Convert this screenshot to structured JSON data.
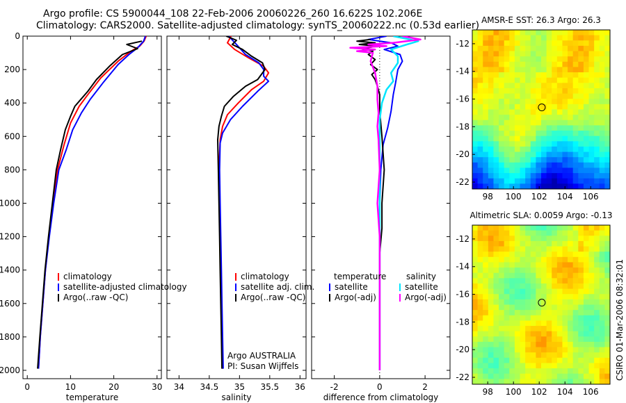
{
  "header": {
    "line1": "Argo profile: CS 5900044_108 22-Feb-2006 20060226_260 16.622S 102.206E",
    "line2": "Climatology: CARS2000. Satellite-adjusted climatology: synTS_20060222.nc (0.53d earlier)"
  },
  "side_label": "CSIRO 01-Mar-2006 08:32:01",
  "colors": {
    "climatology": "#ff0000",
    "satellite": "#0000ff",
    "argo": "#000000",
    "sal_sat": "#00e5ff",
    "sal_argo": "#ff00ff"
  },
  "chart_data": [
    {
      "type": "line",
      "id": "temperature",
      "xlabel": "temperature",
      "ylabel": "",
      "xlim": [
        -1,
        31
      ],
      "ylim": [
        2050,
        0
      ],
      "xticks": [
        0,
        10,
        20,
        30
      ],
      "yticks": [
        0,
        200,
        400,
        600,
        800,
        1000,
        1200,
        1400,
        1600,
        1800,
        2000
      ],
      "legend": {
        "position": "lower-right",
        "entries": [
          "climatology",
          "satellite-adjusted climatology",
          "Argo(..raw -QC)"
        ]
      },
      "series": [
        {
          "name": "climatology",
          "color": "red",
          "points": [
            [
              27.5,
              0
            ],
            [
              27,
              30
            ],
            [
              26,
              60
            ],
            [
              24,
              90
            ],
            [
              21,
              150
            ],
            [
              17,
              250
            ],
            [
              14,
              350
            ],
            [
              12,
              420
            ],
            [
              10,
              520
            ],
            [
              8.5,
              650
            ],
            [
              7,
              800
            ],
            [
              6,
              1000
            ],
            [
              5,
              1200
            ],
            [
              4.2,
              1400
            ],
            [
              3.6,
              1600
            ],
            [
              3,
              1800
            ],
            [
              2.6,
              1990
            ]
          ]
        },
        {
          "name": "satellite",
          "color": "blue",
          "points": [
            [
              27.3,
              0
            ],
            [
              26.9,
              30
            ],
            [
              25.5,
              70
            ],
            [
              23.5,
              110
            ],
            [
              21,
              170
            ],
            [
              17.5,
              280
            ],
            [
              14.5,
              380
            ],
            [
              12.5,
              460
            ],
            [
              10.5,
              560
            ],
            [
              9,
              680
            ],
            [
              7.3,
              800
            ],
            [
              6.1,
              1000
            ],
            [
              5.1,
              1200
            ],
            [
              4.2,
              1400
            ],
            [
              3.6,
              1600
            ],
            [
              3,
              1800
            ],
            [
              2.6,
              1990
            ]
          ]
        },
        {
          "name": "argo",
          "color": "black",
          "points": [
            [
              26.5,
              30
            ],
            [
              23,
              50
            ],
            [
              25.5,
              75
            ],
            [
              22,
              110
            ],
            [
              19,
              180
            ],
            [
              16,
              260
            ],
            [
              14,
              330
            ],
            [
              12,
              390
            ],
            [
              11,
              420
            ],
            [
              10,
              480
            ],
            [
              8.8,
              560
            ],
            [
              7.7,
              680
            ],
            [
              6.7,
              800
            ],
            [
              5.8,
              1000
            ],
            [
              4.9,
              1200
            ],
            [
              4.1,
              1400
            ],
            [
              3.5,
              1600
            ],
            [
              2.9,
              1800
            ],
            [
              2.4,
              1990
            ]
          ]
        }
      ]
    },
    {
      "type": "line",
      "id": "salinity",
      "xlabel": "salinity",
      "xlim": [
        33.8,
        36.1
      ],
      "ylim": [
        2050,
        0
      ],
      "xticks": [
        34,
        34.5,
        35,
        35.5,
        36
      ],
      "legend": {
        "position": "lower-right",
        "entries": [
          "climatology",
          "satellite adj. clim.",
          "Argo(..raw -QC)"
        ]
      },
      "annotation": [
        "Argo AUSTRALIA",
        "PI: Susan Wijffels"
      ],
      "series": [
        {
          "name": "climatology",
          "color": "red",
          "points": [
            [
              34.86,
              0
            ],
            [
              34.8,
              40
            ],
            [
              34.92,
              80
            ],
            [
              35.15,
              130
            ],
            [
              35.4,
              180
            ],
            [
              35.48,
              220
            ],
            [
              35.4,
              270
            ],
            [
              35.2,
              320
            ],
            [
              34.98,
              400
            ],
            [
              34.8,
              470
            ],
            [
              34.72,
              540
            ],
            [
              34.68,
              620
            ],
            [
              34.66,
              800
            ],
            [
              34.67,
              1000
            ],
            [
              34.68,
              1200
            ],
            [
              34.69,
              1400
            ],
            [
              34.7,
              1600
            ],
            [
              34.71,
              1800
            ],
            [
              34.72,
              1990
            ]
          ]
        },
        {
          "name": "satellite",
          "color": "blue",
          "points": [
            [
              34.82,
              0
            ],
            [
              34.95,
              50
            ],
            [
              35.1,
              110
            ],
            [
              35.32,
              160
            ],
            [
              35.4,
              200
            ],
            [
              35.4,
              240
            ],
            [
              35.48,
              270
            ],
            [
              35.3,
              330
            ],
            [
              35.05,
              420
            ],
            [
              34.85,
              500
            ],
            [
              34.72,
              580
            ],
            [
              34.68,
              640
            ],
            [
              34.67,
              800
            ],
            [
              34.68,
              1000
            ],
            [
              34.69,
              1200
            ],
            [
              34.7,
              1400
            ],
            [
              34.71,
              1600
            ],
            [
              34.72,
              1800
            ],
            [
              34.73,
              1990
            ]
          ]
        },
        {
          "name": "argo",
          "color": "black",
          "points": [
            [
              34.78,
              0
            ],
            [
              34.95,
              25
            ],
            [
              34.88,
              50
            ],
            [
              35.05,
              80
            ],
            [
              35.2,
              120
            ],
            [
              35.38,
              160
            ],
            [
              35.42,
              200
            ],
            [
              35.3,
              260
            ],
            [
              35.1,
              300
            ],
            [
              34.9,
              360
            ],
            [
              34.75,
              420
            ],
            [
              34.7,
              480
            ],
            [
              34.66,
              540
            ],
            [
              34.64,
              620
            ],
            [
              34.65,
              800
            ],
            [
              34.66,
              1000
            ],
            [
              34.67,
              1200
            ],
            [
              34.68,
              1400
            ],
            [
              34.69,
              1600
            ],
            [
              34.7,
              1800
            ],
            [
              34.71,
              1990
            ]
          ]
        }
      ]
    },
    {
      "type": "line",
      "id": "difference",
      "xlabel": "difference from climatology",
      "xlim": [
        -3,
        3.1
      ],
      "ylim": [
        2050,
        0
      ],
      "xticks": [
        -2,
        0,
        2
      ],
      "legend": {
        "position": "lower-right",
        "entries": [
          "temperature",
          "satellite",
          "Argo(-adj)",
          "salinity",
          "satellite",
          "Argo(-adj)"
        ]
      },
      "series": [
        {
          "name": "temperature satellite",
          "color": "blue",
          "points": [
            [
              0.3,
              0
            ],
            [
              -0.5,
              20
            ],
            [
              0.5,
              40
            ],
            [
              0.8,
              60
            ],
            [
              0.2,
              80
            ],
            [
              0.9,
              110
            ],
            [
              1.0,
              150
            ],
            [
              0.8,
              200
            ],
            [
              0.7,
              280
            ],
            [
              0.6,
              350
            ],
            [
              0.5,
              450
            ],
            [
              0.35,
              550
            ],
            [
              0.15,
              650
            ],
            [
              0.05,
              800
            ],
            [
              0,
              1000
            ],
            [
              0,
              1400
            ],
            [
              0,
              2000
            ]
          ]
        },
        {
          "name": "temperature argo",
          "color": "black",
          "points": [
            [
              -0.4,
              20
            ],
            [
              -1.0,
              30
            ],
            [
              -0.2,
              40
            ],
            [
              -0.9,
              50
            ],
            [
              -0.1,
              60
            ],
            [
              -0.8,
              75
            ],
            [
              -0.3,
              90
            ],
            [
              -0.5,
              110
            ],
            [
              -0.2,
              140
            ],
            [
              -0.4,
              170
            ],
            [
              -0.1,
              200
            ],
            [
              -0.35,
              230
            ],
            [
              -0.2,
              260
            ],
            [
              -0.1,
              300
            ],
            [
              0,
              350
            ],
            [
              0,
              450
            ],
            [
              0.1,
              600
            ],
            [
              0.2,
              800
            ],
            [
              0.1,
              1000
            ],
            [
              0.1,
              1150
            ],
            [
              0,
              1300
            ],
            [
              0,
              1600
            ],
            [
              0,
              2000
            ]
          ]
        },
        {
          "name": "salinity satellite",
          "color": "cyan",
          "points": [
            [
              0.6,
              0
            ],
            [
              1.7,
              30
            ],
            [
              1.2,
              50
            ],
            [
              0.5,
              80
            ],
            [
              0.8,
              120
            ],
            [
              0.8,
              160
            ],
            [
              0.5,
              220
            ],
            [
              0.6,
              270
            ],
            [
              0.3,
              320
            ],
            [
              0.1,
              400
            ],
            [
              0,
              500
            ],
            [
              0,
              800
            ],
            [
              0,
              2000
            ]
          ]
        },
        {
          "name": "salinity argo",
          "color": "magenta",
          "points": [
            [
              1.0,
              0
            ],
            [
              1.8,
              20
            ],
            [
              0.6,
              40
            ],
            [
              -0.5,
              50
            ],
            [
              0.3,
              60
            ],
            [
              -1.3,
              70
            ],
            [
              -0.2,
              80
            ],
            [
              -1.0,
              90
            ],
            [
              -0.3,
              100
            ],
            [
              -0.4,
              150
            ],
            [
              -0.2,
              220
            ],
            [
              -0.1,
              300
            ],
            [
              -0.1,
              380
            ],
            [
              -0.05,
              460
            ],
            [
              -0.1,
              540
            ],
            [
              -0.05,
              620
            ],
            [
              0,
              800
            ],
            [
              -0.1,
              1000
            ],
            [
              0,
              1200
            ],
            [
              0,
              1600
            ],
            [
              0,
              2000
            ]
          ]
        }
      ]
    },
    {
      "type": "heatmap",
      "id": "amsre-sst",
      "title": "AMSR-E SST: 26.3 Argo: 26.3",
      "xlim": [
        96.8,
        107.5
      ],
      "ylim": [
        -22.5,
        -11
      ],
      "xticks": [
        98,
        100,
        102,
        104,
        106
      ],
      "yticks": [
        -12,
        -14,
        -16,
        -18,
        -20,
        -22
      ],
      "marker": {
        "x": 102.2,
        "y": -16.6
      }
    },
    {
      "type": "heatmap",
      "id": "altimetric-sla",
      "title": "Altimetric SLA: 0.0059 Argo: -0.13",
      "xlim": [
        96.8,
        107.5
      ],
      "ylim": [
        -22.5,
        -11
      ],
      "xticks": [
        98,
        100,
        102,
        104,
        106
      ],
      "yticks": [
        -12,
        -14,
        -16,
        -18,
        -20,
        -22
      ],
      "marker": {
        "x": 102.2,
        "y": -16.6
      }
    }
  ]
}
